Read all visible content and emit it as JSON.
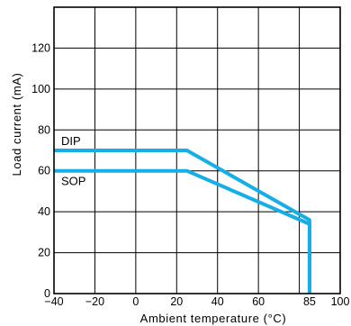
{
  "chart_data": {
    "type": "line",
    "title": "",
    "xlabel": "Ambient temperature (°C)",
    "ylabel": "Load current (mA)",
    "xlim": [
      -40,
      100
    ],
    "ylim": [
      0,
      140
    ],
    "grid": true,
    "x_ticks": [
      -40,
      -20,
      0,
      20,
      40,
      60,
      85,
      100
    ],
    "x_tick_labels": [
      "−40",
      "−20",
      "0",
      "20",
      "40",
      "60",
      "85",
      "100"
    ],
    "y_ticks": [
      0,
      20,
      40,
      60,
      80,
      100,
      120
    ],
    "y_tick_labels": [
      "0",
      "20",
      "40",
      "60",
      "80",
      "100",
      "120"
    ],
    "series": [
      {
        "name": "DIP",
        "x": [
          -40,
          25,
          85,
          85
        ],
        "y": [
          70,
          70,
          36,
          0
        ]
      },
      {
        "name": "SOP",
        "x": [
          -40,
          25,
          85,
          85
        ],
        "y": [
          60,
          60,
          34,
          0
        ]
      }
    ],
    "line_color": "#16aee6"
  }
}
